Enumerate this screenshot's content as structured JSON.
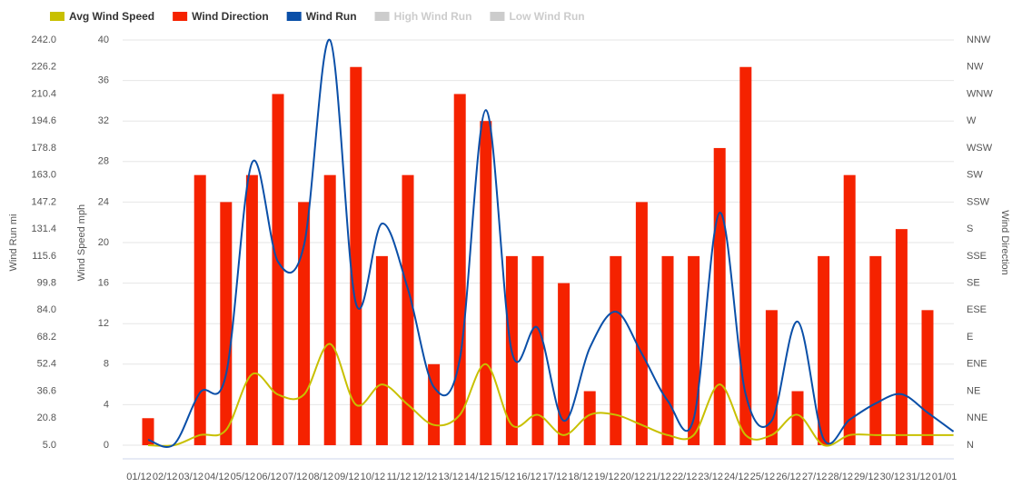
{
  "chart_data": {
    "type": "combo",
    "categories": [
      "01/12",
      "02/12",
      "03/12",
      "04/12",
      "05/12",
      "06/12",
      "07/12",
      "08/12",
      "09/12",
      "10/12",
      "11/12",
      "12/12",
      "13/12",
      "14/12",
      "15/12",
      "16/12",
      "17/12",
      "18/12",
      "19/12",
      "20/12",
      "21/12",
      "22/12",
      "23/12",
      "24/12",
      "25/12",
      "26/12",
      "27/12",
      "28/12",
      "29/12",
      "30/12",
      "31/12",
      "01/01"
    ],
    "ylabel": "Wind Speed mph",
    "ylim": [
      0,
      40
    ],
    "yticks": [
      0,
      4,
      8,
      12,
      16,
      20,
      24,
      28,
      32,
      36,
      40
    ],
    "y2label": "Wind Direction",
    "y2lim": [
      0,
      337.5
    ],
    "y2ticks": [
      {
        "value": 0,
        "label": "N"
      },
      {
        "value": 22.5,
        "label": "NNE"
      },
      {
        "value": 45,
        "label": "NE"
      },
      {
        "value": 67.5,
        "label": "ENE"
      },
      {
        "value": 90,
        "label": "E"
      },
      {
        "value": 112.5,
        "label": "ESE"
      },
      {
        "value": 135,
        "label": "SE"
      },
      {
        "value": 157.5,
        "label": "SSE"
      },
      {
        "value": 180,
        "label": "S"
      },
      {
        "value": 202.5,
        "label": "SSW"
      },
      {
        "value": 225,
        "label": "SW"
      },
      {
        "value": 247.5,
        "label": "WSW"
      },
      {
        "value": 270,
        "label": "W"
      },
      {
        "value": 292.5,
        "label": "WNW"
      },
      {
        "value": 315,
        "label": "NW"
      },
      {
        "value": 337.5,
        "label": "NNW"
      }
    ],
    "y3label": "Wind Run mi",
    "y3lim": [
      5,
      242
    ],
    "y3ticks": [
      {
        "value": 5,
        "label": "5.0"
      },
      20.8,
      36.6,
      52.4,
      68.2,
      {
        "value": 84,
        "label": "84.0"
      },
      99.8,
      115.6,
      131.4,
      147.2,
      {
        "value": 163,
        "label": "163.0"
      },
      178.8,
      194.6,
      210.4,
      226.2,
      {
        "value": 242,
        "label": "242.0"
      }
    ],
    "grid": true,
    "legend": "top-left",
    "series": [
      {
        "name": "Avg Wind Speed",
        "type": "line",
        "axis": "y",
        "color": "#c8c000",
        "values": [
          0,
          0,
          1,
          1.5,
          7,
          5,
          5,
          10,
          4,
          6,
          4,
          2,
          3,
          8,
          2,
          3,
          1,
          3,
          3,
          2,
          1,
          1,
          6,
          1,
          1,
          3,
          0,
          1,
          1,
          1,
          1,
          1
        ]
      },
      {
        "name": "Wind Direction",
        "type": "bar",
        "axis": "y2",
        "color": "#f52200",
        "values": [
          22.5,
          null,
          225,
          202.5,
          225,
          292.5,
          202.5,
          225,
          315,
          157.5,
          225,
          67.5,
          292.5,
          270,
          157.5,
          157.5,
          135,
          45,
          157.5,
          202.5,
          157.5,
          157.5,
          247.5,
          315,
          112.5,
          45,
          157.5,
          225,
          157.5,
          180,
          112.5,
          null
        ]
      },
      {
        "name": "Wind Run",
        "type": "line",
        "axis": "y3",
        "color": "#0a4fa8",
        "values": [
          8.2,
          5.5,
          35.8,
          46.4,
          170.2,
          112.3,
          121.9,
          242,
          87.9,
          134.6,
          96.4,
          39,
          55.5,
          201,
          59.7,
          73.5,
          19.3,
          61.9,
          83.1,
          58.7,
          31,
          20.4,
          141,
          34.8,
          19.3,
          77.3,
          8.7,
          19.9,
          29.4,
          34.8,
          24.1,
          13
        ]
      },
      {
        "name": "High Wind Run",
        "visible": false,
        "color": "#cccccc"
      },
      {
        "name": "Low Wind Run",
        "visible": false,
        "color": "#cccccc"
      }
    ]
  }
}
